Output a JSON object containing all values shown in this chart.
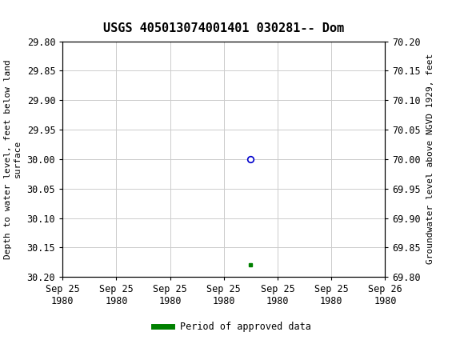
{
  "title": "USGS 405013074001401 030281-- Dom",
  "ylabel_left": "Depth to water level, feet below land\nsurface",
  "ylabel_right": "Groundwater level above NGVD 1929, feet",
  "ylim_left": [
    29.8,
    30.2
  ],
  "ylim_right": [
    69.8,
    70.2
  ],
  "yticks_left": [
    29.8,
    29.85,
    29.9,
    29.95,
    30.0,
    30.05,
    30.1,
    30.15,
    30.2
  ],
  "yticks_right": [
    69.8,
    69.85,
    69.9,
    69.95,
    70.0,
    70.05,
    70.1,
    70.15,
    70.2
  ],
  "ytick_labels_left": [
    "29.80",
    "29.85",
    "29.90",
    "29.95",
    "30.00",
    "30.05",
    "30.10",
    "30.15",
    "30.20"
  ],
  "ytick_labels_right": [
    "69.80",
    "69.85",
    "69.90",
    "69.95",
    "70.00",
    "70.05",
    "70.10",
    "70.15",
    "70.20"
  ],
  "data_point_x": 3.5,
  "data_point_y": 30.0,
  "approved_x": 3.5,
  "approved_y": 30.18,
  "xlim": [
    0,
    6
  ],
  "xtick_positions": [
    0,
    1,
    2,
    3,
    4,
    5,
    6
  ],
  "xtick_labels": [
    "Sep 25\n1980",
    "Sep 25\n1980",
    "Sep 25\n1980",
    "Sep 25\n1980",
    "Sep 25\n1980",
    "Sep 25\n1980",
    "Sep 26\n1980"
  ],
  "header_color": "#1a6b3c",
  "grid_color": "#cccccc",
  "bg_color": "#ffffff",
  "point_color": "#0000cc",
  "approved_color": "#008000",
  "legend_label": "Period of approved data",
  "title_fontsize": 11,
  "axis_fontsize": 8,
  "tick_fontsize": 8.5
}
